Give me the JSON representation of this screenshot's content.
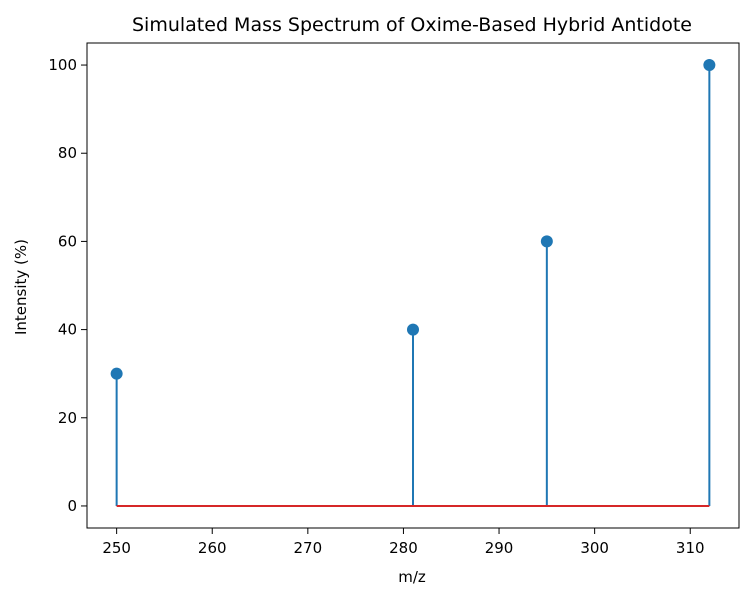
{
  "chart_data": {
    "type": "stem",
    "title": "Simulated Mass Spectrum of Oxime-Based Hybrid Antidote",
    "xlabel": "m/z",
    "ylabel": "Intensity (%)",
    "xlim": [
      246.9,
      315.1
    ],
    "ylim": [
      -5,
      105
    ],
    "xticks": [
      250,
      260,
      270,
      280,
      290,
      300,
      310
    ],
    "yticks": [
      0,
      20,
      40,
      60,
      80,
      100
    ],
    "x": [
      250,
      281,
      295,
      312
    ],
    "y": [
      30,
      40,
      60,
      100
    ],
    "baseline": 0,
    "grid": false,
    "colors": {
      "stem": "#1f77b4",
      "marker": "#1f77b4",
      "baseline": "#d62728",
      "axes": "#000000"
    }
  }
}
